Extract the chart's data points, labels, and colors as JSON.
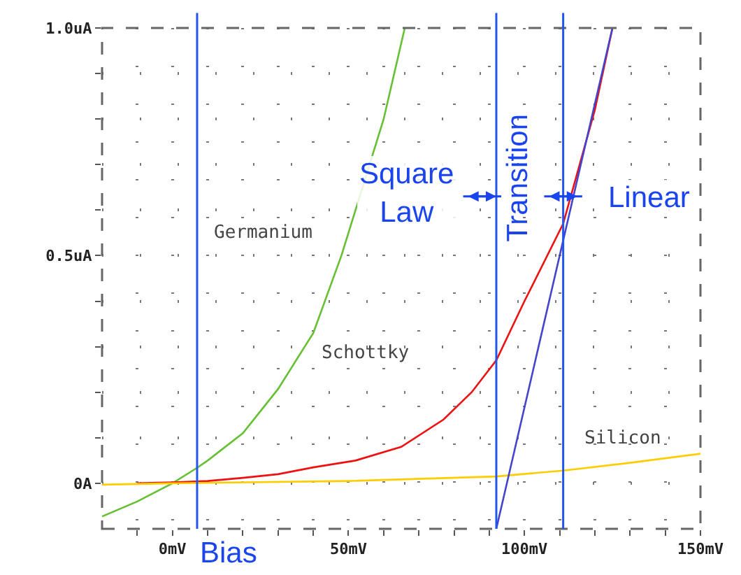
{
  "chart_data": {
    "type": "line",
    "xlim": [
      -20,
      150
    ],
    "ylim": [
      -0.1,
      1.0
    ],
    "xticks": [
      {
        "value": -10,
        "label": null
      },
      {
        "value": 0,
        "label": "0mV"
      },
      {
        "value": 10,
        "label": null
      },
      {
        "value": 20,
        "label": null
      },
      {
        "value": 30,
        "label": null
      },
      {
        "value": 40,
        "label": null
      },
      {
        "value": 50,
        "label": "50mV"
      },
      {
        "value": 60,
        "label": null
      },
      {
        "value": 70,
        "label": null
      },
      {
        "value": 80,
        "label": null
      },
      {
        "value": 90,
        "label": null
      },
      {
        "value": 100,
        "label": "100mV"
      },
      {
        "value": 110,
        "label": null
      },
      {
        "value": 120,
        "label": null
      },
      {
        "value": 130,
        "label": null
      },
      {
        "value": 140,
        "label": null
      },
      {
        "value": 150,
        "label": "150mV"
      }
    ],
    "yticks": [
      {
        "value": 0,
        "label": "0A"
      },
      {
        "value": 0.1,
        "label": null
      },
      {
        "value": 0.2,
        "label": null
      },
      {
        "value": 0.3,
        "label": null
      },
      {
        "value": 0.4,
        "label": null
      },
      {
        "value": 0.5,
        "label": "0.5uA"
      },
      {
        "value": 0.6,
        "label": null
      },
      {
        "value": 0.7,
        "label": null
      },
      {
        "value": 0.8,
        "label": null
      },
      {
        "value": 0.9,
        "label": null
      },
      {
        "value": 1.0,
        "label": "1.0uA"
      }
    ],
    "grid": true,
    "marker": "none",
    "line_style": "solid",
    "series": [
      {
        "color": "#66c033",
        "x": [
          -20,
          -10,
          0,
          7,
          10,
          20,
          30,
          40,
          48,
          53,
          60,
          66
        ],
        "values": [
          -0.073,
          -0.04,
          0.0,
          0.034,
          0.05,
          0.11,
          0.207,
          0.33,
          0.5,
          0.625,
          0.8,
          1.0
        ]
      },
      {
        "color": "#ee1111",
        "x": [
          -10,
          0,
          10,
          20,
          30,
          40,
          52,
          65,
          77,
          85,
          92,
          100,
          111,
          120,
          125
        ],
        "values": [
          0.0,
          0.002,
          0.005,
          0.012,
          0.02,
          0.035,
          0.05,
          0.08,
          0.14,
          0.2,
          0.27,
          0.4,
          0.57,
          0.82,
          1.0
        ]
      },
      {
        "color": "#ffcc00",
        "x": [
          -20,
          0,
          50,
          92,
          111,
          130,
          150
        ],
        "values": [
          -0.003,
          0.0,
          0.005,
          0.015,
          0.028,
          0.045,
          0.065
        ]
      },
      {
        "color": "#4444cc",
        "x": [
          92,
          125
        ],
        "values": [
          -0.1,
          1.0
        ]
      }
    ],
    "ref_lines": [
      {
        "axis": "x",
        "value": 7,
        "label": "Bias",
        "color": "#2255ee"
      },
      {
        "axis": "x",
        "value": 92,
        "label": "Transition",
        "color": "#2255ee"
      },
      {
        "axis": "x",
        "value": 111,
        "label": null,
        "color": "#2255ee"
      }
    ],
    "annotations": [
      "Germanium",
      "Schottky",
      "Silicon",
      "Square\nLaw",
      "Linear"
    ]
  }
}
